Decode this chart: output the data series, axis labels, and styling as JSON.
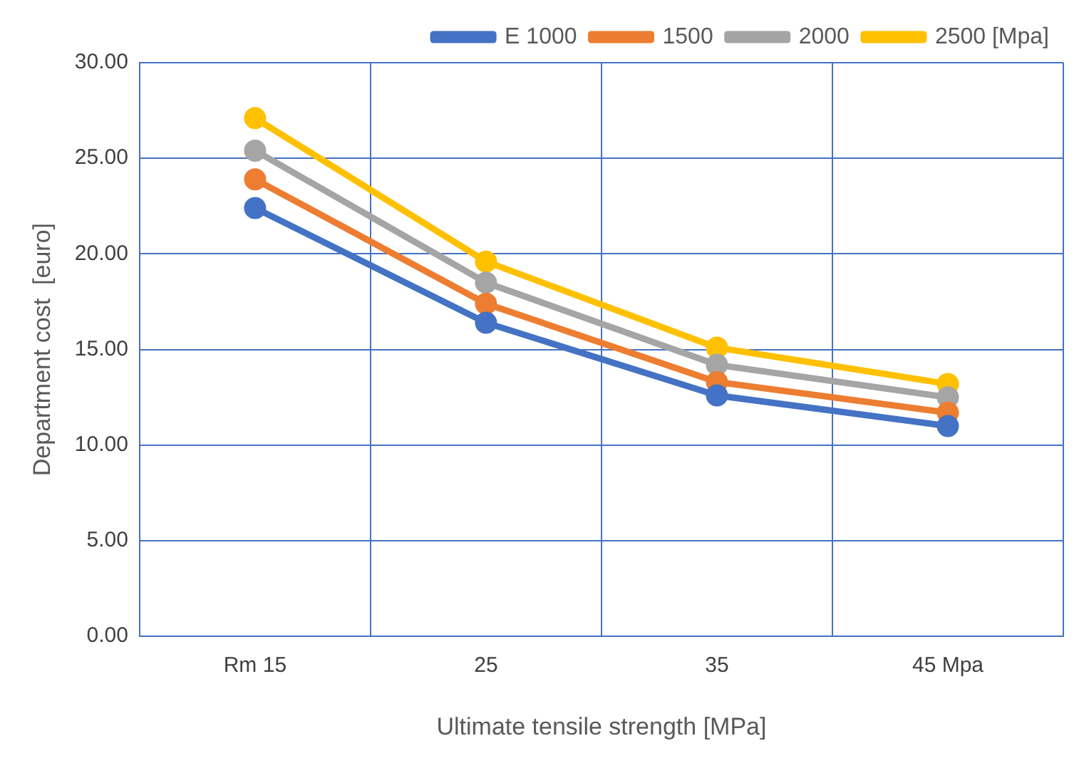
{
  "chart_data": {
    "type": "line",
    "categories": [
      "Rm 15",
      "25",
      "35",
      "45 Mpa"
    ],
    "series": [
      {
        "name": "E 1000",
        "color": "#4472c4",
        "values": [
          22.4,
          16.4,
          12.6,
          11.0
        ]
      },
      {
        "name": "1500",
        "color": "#ed7d31",
        "values": [
          23.9,
          17.4,
          13.3,
          11.7
        ]
      },
      {
        "name": "2000",
        "color": "#a5a5a5",
        "values": [
          25.4,
          18.5,
          14.2,
          12.5
        ]
      },
      {
        "name": "2500 [Mpa]",
        "color": "#ffc000",
        "values": [
          27.1,
          19.6,
          15.1,
          13.2
        ]
      }
    ],
    "xlabel": "Ultimate tensile strength [MPa]",
    "ylabel": "Department cost  [euro]",
    "ylim": [
      0,
      30
    ],
    "yticks": [
      {
        "value": 0,
        "label": "0.00"
      },
      {
        "value": 5,
        "label": "5.00"
      },
      {
        "value": 10,
        "label": "10.00"
      },
      {
        "value": 15,
        "label": "15.00"
      },
      {
        "value": 20,
        "label": "20.00"
      },
      {
        "value": 25,
        "label": "25.00"
      },
      {
        "value": 30,
        "label": "30.00"
      }
    ],
    "grid": true,
    "legend": "top right",
    "marker": "circle",
    "line_style": "solid"
  }
}
